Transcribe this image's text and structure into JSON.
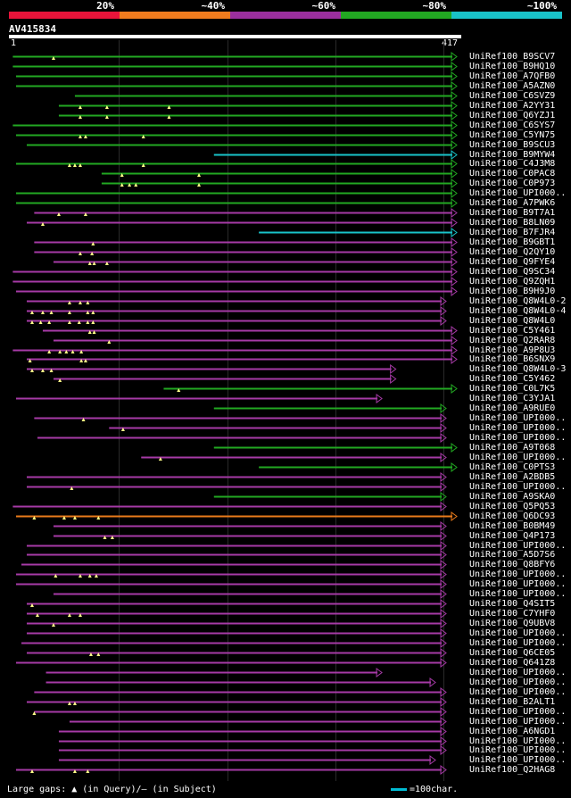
{
  "legend": [
    {
      "label": "20%",
      "color": "#e8143a"
    },
    {
      "label": "~40%",
      "color": "#f07c1e"
    },
    {
      "label": "~60%",
      "color": "#9b2f9e"
    },
    {
      "label": "~80%",
      "color": "#22a822"
    },
    {
      "label": "~100%",
      "color": "#19c3c9"
    }
  ],
  "query": {
    "title": "AV415834",
    "start": "1",
    "end": "417",
    "length": 417
  },
  "footer": {
    "gaps_text": "Large gaps: ▲ (in Query)/— (in Subject)",
    "scale_text": "=100char."
  },
  "colors": {
    "green": "#22a822",
    "purple": "#a63aa6",
    "cyan": "#19c3c9",
    "orange": "#e87a1a",
    "triangle": "#ffff88"
  },
  "hits": [
    {
      "name": "UniRef100_B9SCV7",
      "color": "green",
      "start": 2,
      "end": 417,
      "gaps": [
        40
      ],
      "arrow": "right"
    },
    {
      "name": "UniRef100_B9HQ10",
      "color": "green",
      "start": 2,
      "end": 417,
      "gaps": [],
      "arrow": "right"
    },
    {
      "name": "UniRef100_A7QFB0",
      "color": "green",
      "start": 5,
      "end": 417,
      "gaps": [],
      "arrow": "right"
    },
    {
      "name": "UniRef100_A5AZN0",
      "color": "green",
      "start": 5,
      "end": 417,
      "gaps": [],
      "arrow": "right"
    },
    {
      "name": "UniRef100_C6SVZ9",
      "color": "green",
      "start": 60,
      "end": 417,
      "gaps": [],
      "arrow": "right"
    },
    {
      "name": "UniRef100_A2YY31",
      "color": "green",
      "start": 45,
      "end": 417,
      "gaps": [
        65,
        90,
        148
      ],
      "arrow": "right"
    },
    {
      "name": "UniRef100_Q6YZJ1",
      "color": "green",
      "start": 45,
      "end": 417,
      "gaps": [
        65,
        90,
        148
      ],
      "arrow": "right"
    },
    {
      "name": "UniRef100_C6SYS7",
      "color": "green",
      "start": 2,
      "end": 417,
      "gaps": [],
      "arrow": "right"
    },
    {
      "name": "UniRef100_C5YN75",
      "color": "green",
      "start": 5,
      "end": 417,
      "gaps": [
        65,
        70,
        124
      ],
      "arrow": "right"
    },
    {
      "name": "UniRef100_B9SCU3",
      "color": "green",
      "start": 15,
      "end": 417,
      "gaps": [],
      "arrow": "right"
    },
    {
      "name": "UniRef100_B9MYW4",
      "color": "cyan",
      "start": 190,
      "end": 417,
      "gaps": [],
      "arrow": "right"
    },
    {
      "name": "UniRef100_C4J3M8",
      "color": "green",
      "start": 5,
      "end": 417,
      "gaps": [
        55,
        60,
        65,
        124
      ],
      "arrow": "right"
    },
    {
      "name": "UniRef100_C0PAC8",
      "color": "green",
      "start": 85,
      "end": 417,
      "gaps": [
        104,
        176
      ],
      "arrow": "right"
    },
    {
      "name": "UniRef100_C0P973",
      "color": "green",
      "start": 85,
      "end": 417,
      "gaps": [
        104,
        111,
        117,
        176
      ],
      "arrow": "right"
    },
    {
      "name": "UniRef100_UPI000..",
      "color": "green",
      "start": 5,
      "end": 417,
      "gaps": [],
      "arrow": "right"
    },
    {
      "name": "UniRef100_A7PWK6",
      "color": "green",
      "start": 5,
      "end": 417,
      "gaps": [],
      "arrow": "right"
    },
    {
      "name": "UniRef100_B9T7A1",
      "color": "purple",
      "start": 22,
      "end": 417,
      "gaps": [
        45,
        70
      ],
      "arrow": "right"
    },
    {
      "name": "UniRef100_B8LN09",
      "color": "purple",
      "start": 15,
      "end": 417,
      "gaps": [
        30
      ],
      "arrow": "right"
    },
    {
      "name": "UniRef100_B7FJR4",
      "color": "cyan",
      "start": 232,
      "end": 417,
      "gaps": [],
      "arrow": "right"
    },
    {
      "name": "UniRef100_B9GBT1",
      "color": "purple",
      "start": 22,
      "end": 417,
      "gaps": [
        77
      ],
      "arrow": "right"
    },
    {
      "name": "UniRef100_Q2QY10",
      "color": "purple",
      "start": 22,
      "end": 417,
      "gaps": [
        65,
        76
      ],
      "arrow": "right"
    },
    {
      "name": "UniRef100_Q9FYE4",
      "color": "purple",
      "start": 40,
      "end": 417,
      "gaps": [
        74,
        78,
        90
      ],
      "arrow": "right"
    },
    {
      "name": "UniRef100_Q9SC34",
      "color": "purple",
      "start": 2,
      "end": 417,
      "gaps": [],
      "arrow": "right"
    },
    {
      "name": "UniRef100_Q9ZQH1",
      "color": "purple",
      "start": 2,
      "end": 417,
      "gaps": [],
      "arrow": "right"
    },
    {
      "name": "UniRef100_B9H9J0",
      "color": "purple",
      "start": 5,
      "end": 417,
      "gaps": [],
      "arrow": "right"
    },
    {
      "name": "UniRef100_Q8W4L0-2",
      "color": "purple",
      "start": 15,
      "end": 407,
      "gaps": [
        55,
        65,
        72
      ],
      "arrow": "right"
    },
    {
      "name": "UniRef100_Q8W4L0-4",
      "color": "purple",
      "start": 15,
      "end": 407,
      "gaps": [
        20,
        30,
        38,
        55,
        72,
        77
      ],
      "arrow": "right"
    },
    {
      "name": "UniRef100_Q8W4L0",
      "color": "purple",
      "start": 15,
      "end": 407,
      "gaps": [
        20,
        28,
        36,
        55,
        64,
        72,
        77
      ],
      "arrow": "right"
    },
    {
      "name": "UniRef100_C5Y461",
      "color": "purple",
      "start": 30,
      "end": 417,
      "gaps": [
        74,
        78
      ],
      "arrow": "right"
    },
    {
      "name": "UniRef100_Q2RAR8",
      "color": "purple",
      "start": 40,
      "end": 417,
      "gaps": [
        92
      ],
      "arrow": "right"
    },
    {
      "name": "UniRef100_A9P8U3",
      "color": "purple",
      "start": 2,
      "end": 417,
      "gaps": [
        36,
        46,
        52,
        58,
        66
      ],
      "arrow": "right"
    },
    {
      "name": "UniRef100_B6SNX9",
      "color": "purple",
      "start": 15,
      "end": 417,
      "gaps": [
        18,
        66,
        70
      ],
      "arrow": "right"
    },
    {
      "name": "UniRef100_Q8W4L0-3",
      "color": "purple",
      "start": 15,
      "end": 360,
      "gaps": [
        20,
        30,
        38
      ],
      "arrow": "right"
    },
    {
      "name": "UniRef100_C5Y462",
      "color": "purple",
      "start": 40,
      "end": 360,
      "gaps": [
        46
      ],
      "arrow": "right"
    },
    {
      "name": "UniRef100_C0L7K5",
      "color": "green",
      "start": 143,
      "end": 417,
      "gaps": [
        157
      ],
      "arrow": "right"
    },
    {
      "name": "UniRef100_C3YJA1",
      "color": "purple",
      "start": 5,
      "end": 347,
      "gaps": [],
      "arrow": "right"
    },
    {
      "name": "UniRef100_A9RUE0",
      "color": "green",
      "start": 190,
      "end": 407,
      "gaps": [],
      "arrow": "right"
    },
    {
      "name": "UniRef100_UPI000..",
      "color": "purple",
      "start": 22,
      "end": 407,
      "gaps": [
        68
      ],
      "arrow": "right"
    },
    {
      "name": "UniRef100_UPI000..",
      "color": "purple",
      "start": 92,
      "end": 407,
      "gaps": [
        105
      ],
      "arrow": "right"
    },
    {
      "name": "UniRef100_UPI000..",
      "color": "purple",
      "start": 25,
      "end": 407,
      "gaps": [],
      "arrow": "right"
    },
    {
      "name": "UniRef100_A9T068",
      "color": "green",
      "start": 190,
      "end": 417,
      "gaps": [],
      "arrow": "right"
    },
    {
      "name": "UniRef100_UPI000..",
      "color": "purple",
      "start": 122,
      "end": 407,
      "gaps": [
        140
      ],
      "arrow": "right"
    },
    {
      "name": "UniRef100_C0PTS3",
      "color": "green",
      "start": 232,
      "end": 417,
      "gaps": [],
      "arrow": "right"
    },
    {
      "name": "UniRef100_A2BDB5",
      "color": "purple",
      "start": 15,
      "end": 407,
      "gaps": [],
      "arrow": "right"
    },
    {
      "name": "UniRef100_UPI000..",
      "color": "purple",
      "start": 15,
      "end": 407,
      "gaps": [
        57
      ],
      "arrow": "right"
    },
    {
      "name": "UniRef100_A9SKA0",
      "color": "green",
      "start": 190,
      "end": 407,
      "gaps": [],
      "arrow": "right"
    },
    {
      "name": "UniRef100_Q5PQ53",
      "color": "purple",
      "start": 2,
      "end": 407,
      "gaps": [],
      "arrow": "right"
    },
    {
      "name": "UniRef100_Q6DC93",
      "color": "orange",
      "start": 5,
      "end": 417,
      "gaps": [
        22,
        50,
        60,
        82
      ],
      "arrow": "right"
    },
    {
      "name": "UniRef100_B0BM49",
      "color": "purple",
      "start": 40,
      "end": 407,
      "gaps": [],
      "arrow": "right"
    },
    {
      "name": "UniRef100_Q4P173",
      "color": "purple",
      "start": 40,
      "end": 407,
      "gaps": [
        88,
        95
      ],
      "arrow": "right"
    },
    {
      "name": "UniRef100_UPI000..",
      "color": "purple",
      "start": 15,
      "end": 407,
      "gaps": [],
      "arrow": "right"
    },
    {
      "name": "UniRef100_A5D7S6",
      "color": "purple",
      "start": 15,
      "end": 407,
      "gaps": [],
      "arrow": "right"
    },
    {
      "name": "UniRef100_Q8BFY6",
      "color": "purple",
      "start": 10,
      "end": 407,
      "gaps": [],
      "arrow": "right"
    },
    {
      "name": "UniRef100_UPI000..",
      "color": "purple",
      "start": 5,
      "end": 407,
      "gaps": [
        42,
        65,
        74,
        80
      ],
      "arrow": "right"
    },
    {
      "name": "UniRef100_UPI000..",
      "color": "purple",
      "start": 5,
      "end": 407,
      "gaps": [],
      "arrow": "right"
    },
    {
      "name": "UniRef100_UPI000..",
      "color": "purple",
      "start": 40,
      "end": 407,
      "gaps": [],
      "arrow": "right"
    },
    {
      "name": "UniRef100_Q4SIT5",
      "color": "purple",
      "start": 15,
      "end": 407,
      "gaps": [
        20
      ],
      "arrow": "right"
    },
    {
      "name": "UniRef100_C7YHF0",
      "color": "purple",
      "start": 15,
      "end": 407,
      "gaps": [
        25,
        55,
        65
      ],
      "arrow": "right"
    },
    {
      "name": "UniRef100_Q9UBV8",
      "color": "purple",
      "start": 15,
      "end": 407,
      "gaps": [
        40
      ],
      "arrow": "right"
    },
    {
      "name": "UniRef100_UPI000..",
      "color": "purple",
      "start": 15,
      "end": 407,
      "gaps": [],
      "arrow": "right"
    },
    {
      "name": "UniRef100_UPI000..",
      "color": "purple",
      "start": 10,
      "end": 407,
      "gaps": [],
      "arrow": "right"
    },
    {
      "name": "UniRef100_Q6CE05",
      "color": "purple",
      "start": 15,
      "end": 407,
      "gaps": [
        75,
        82
      ],
      "arrow": "right"
    },
    {
      "name": "UniRef100_Q641Z8",
      "color": "purple",
      "start": 5,
      "end": 407,
      "gaps": [],
      "arrow": "right"
    },
    {
      "name": "UniRef100_UPI000..",
      "color": "purple",
      "start": 33,
      "end": 347,
      "gaps": [],
      "arrow": "right"
    },
    {
      "name": "UniRef100_UPI000..",
      "color": "purple",
      "start": 33,
      "end": 397,
      "gaps": [],
      "arrow": "right"
    },
    {
      "name": "UniRef100_UPI000..",
      "color": "purple",
      "start": 22,
      "end": 407,
      "gaps": [],
      "arrow": "right"
    },
    {
      "name": "UniRef100_B2ALT1",
      "color": "purple",
      "start": 15,
      "end": 407,
      "gaps": [
        55,
        60
      ],
      "arrow": "right"
    },
    {
      "name": "UniRef100_UPI000..",
      "color": "purple",
      "start": 22,
      "end": 407,
      "gaps": [
        22
      ],
      "arrow": "right"
    },
    {
      "name": "UniRef100_UPI000..",
      "color": "purple",
      "start": 55,
      "end": 407,
      "gaps": [],
      "arrow": "right"
    },
    {
      "name": "UniRef100_A6NGD1",
      "color": "purple",
      "start": 45,
      "end": 407,
      "gaps": [],
      "arrow": "right"
    },
    {
      "name": "UniRef100_UPI000..",
      "color": "purple",
      "start": 45,
      "end": 407,
      "gaps": [],
      "arrow": "right"
    },
    {
      "name": "UniRef100_UPI000..",
      "color": "purple",
      "start": 45,
      "end": 407,
      "gaps": [],
      "arrow": "right"
    },
    {
      "name": "UniRef100_UPI000..",
      "color": "purple",
      "start": 45,
      "end": 397,
      "gaps": [],
      "arrow": "right"
    },
    {
      "name": "UniRef100_Q2HAG8",
      "color": "purple",
      "start": 5,
      "end": 407,
      "gaps": [
        20,
        60,
        72
      ],
      "arrow": "right"
    }
  ]
}
